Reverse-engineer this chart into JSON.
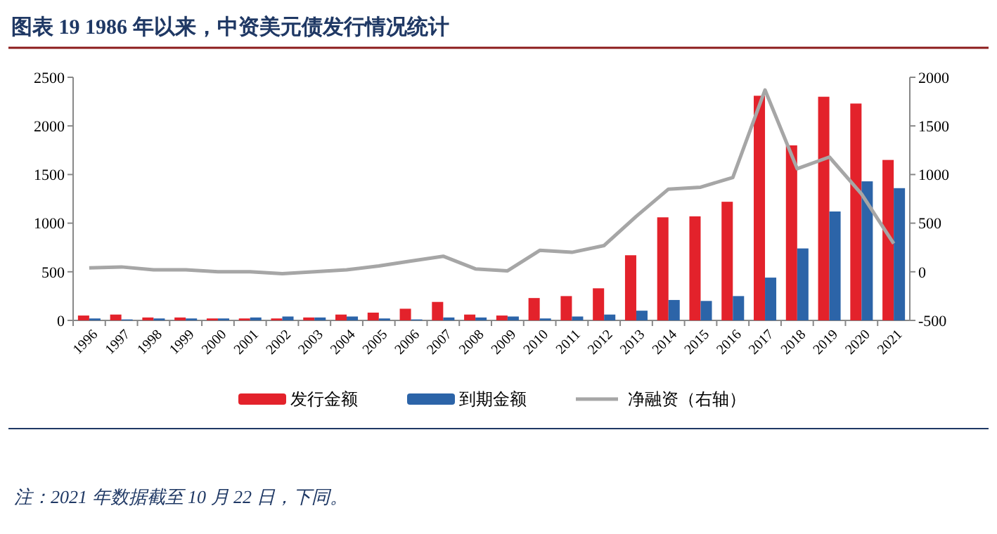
{
  "chart_data": {
    "type": "bar",
    "title": "图表 19   1986 年以来，中资美元债发行情况统计",
    "categories": [
      "1996",
      "1997",
      "1998",
      "1999",
      "2000",
      "2001",
      "2002",
      "2003",
      "2004",
      "2005",
      "2006",
      "2007",
      "2008",
      "2009",
      "2010",
      "2011",
      "2012",
      "2013",
      "2014",
      "2015",
      "2016",
      "2017",
      "2018",
      "2019",
      "2020",
      "2021"
    ],
    "series": [
      {
        "name": "发行金额",
        "color": "#e3222b",
        "values": [
          50,
          60,
          30,
          30,
          20,
          20,
          20,
          30,
          60,
          80,
          120,
          190,
          60,
          50,
          230,
          250,
          330,
          670,
          1060,
          1070,
          1220,
          2310,
          1800,
          2300,
          2230,
          1650
        ]
      },
      {
        "name": "到期金额",
        "color": "#2c64a8",
        "values": [
          20,
          10,
          20,
          20,
          20,
          30,
          40,
          30,
          40,
          20,
          10,
          30,
          30,
          40,
          20,
          40,
          60,
          100,
          210,
          200,
          250,
          440,
          740,
          1120,
          1430,
          1360
        ]
      },
      {
        "name": "净融资（右轴）",
        "type": "line",
        "axis": "y2",
        "color": "#a6a6a6",
        "values": [
          40,
          50,
          20,
          20,
          0,
          0,
          -20,
          0,
          20,
          60,
          110,
          160,
          30,
          10,
          220,
          200,
          270,
          570,
          850,
          870,
          970,
          1870,
          1060,
          1180,
          800,
          290
        ]
      }
    ],
    "ylim": [
      0,
      2500
    ],
    "yticks": [
      0,
      500,
      1000,
      1500,
      2000,
      2500
    ],
    "y2lim": [
      -500,
      2000
    ],
    "y2ticks": [
      -500,
      0,
      500,
      1000,
      1500,
      2000
    ],
    "legend": "bottom",
    "grid": false,
    "annotations": [
      "注：2021 年数据截至 10 月 22 日，下同。"
    ]
  }
}
